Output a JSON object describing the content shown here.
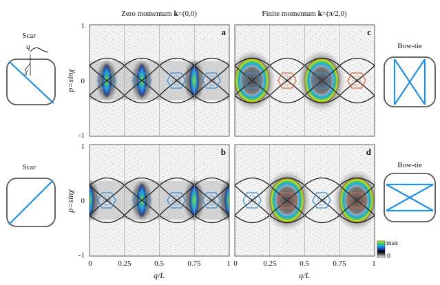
{
  "figure": {
    "column_titles": {
      "left_prefix": "Zero momentum ",
      "left_k": "k",
      "left_suffix": "=(0,0)",
      "right_prefix": "Finite momentum ",
      "right_k": "k",
      "right_suffix": "=(π/2,0)"
    },
    "ylabel": "p=sinχ",
    "xlabel": "q/L",
    "x_ticks": [
      "0",
      "0.25",
      "0.5",
      "0.75",
      "1"
    ],
    "y_ticks": [
      "1",
      "0",
      "-1"
    ],
    "panel_letters": [
      "a",
      "b",
      "c",
      "d"
    ],
    "colorbar": {
      "max_label": "max",
      "min_label": "0"
    },
    "left_insets": {
      "top_title": "Scar",
      "bottom_title": "Scar",
      "q_label": "q",
      "chi_label": "χ"
    },
    "right_insets": {
      "top_title": "Bow-tie",
      "bottom_title": "Bow-tie"
    },
    "colors": {
      "orbit_blue": "#2f8fde",
      "orbit_red": "#e8623a",
      "separatrix": "#1a1a1a",
      "inset_line": "#1e90e6"
    }
  }
}
